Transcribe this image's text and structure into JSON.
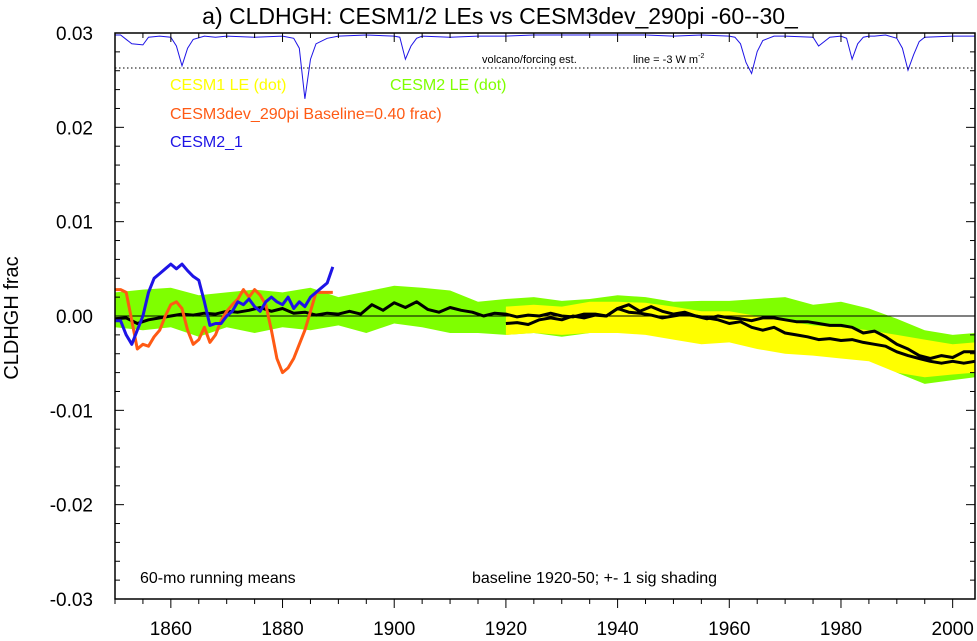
{
  "chart_data": {
    "type": "line",
    "title": "a) CLDHGH: CESM1/2 LEs vs CESM3dev_290pi -60--30_",
    "xlabel": "",
    "ylabel": "CLDHGH frac",
    "xlim": [
      1850,
      2004
    ],
    "ylim": [
      -0.03,
      0.03
    ],
    "x_ticks": [
      1860,
      1880,
      1900,
      1920,
      1940,
      1960,
      1980,
      2000
    ],
    "y_ticks": [
      -0.03,
      -0.02,
      -0.01,
      0.0,
      0.01,
      0.02,
      0.03
    ],
    "y_tick_labels": [
      "-0.03",
      "-0.02",
      "-0.01",
      "0.00",
      "0.01",
      "0.02",
      "0.03"
    ],
    "grid": false,
    "annotations": {
      "volcano_label": "volcano/forcing est.",
      "volcano_line_label": "line = -3 W m",
      "volcano_line_sup": "-2",
      "running_means": "60-mo running means",
      "baseline_note": "baseline 1920-50; +- 1 sig shading"
    },
    "legend": [
      {
        "label": "CESM1 LE (dot)",
        "color": "#ffff00"
      },
      {
        "label": "CESM2 LE (dot)",
        "color": "#7fff00"
      },
      {
        "label": "CESM3dev_290pi Baseline=0.40 frac)",
        "color": "#ff5a14"
      },
      {
        "label": "CESM2_1",
        "color": "#1e14e6"
      }
    ],
    "series": [
      {
        "name": "CESM2 LE (dot)",
        "kind": "band",
        "color": "#7fff00",
        "x": [
          1850,
          1855,
          1860,
          1865,
          1870,
          1875,
          1880,
          1885,
          1890,
          1895,
          1900,
          1905,
          1910,
          1915,
          1920,
          1925,
          1930,
          1935,
          1940,
          1945,
          1950,
          1955,
          1960,
          1965,
          1970,
          1975,
          1980,
          1985,
          1990,
          1995,
          2000,
          2004
        ],
        "upper": [
          0.0025,
          0.0028,
          0.003,
          0.0022,
          0.0025,
          0.0028,
          0.0025,
          0.003,
          0.002,
          0.0026,
          0.0032,
          0.003,
          0.0027,
          0.0015,
          0.0018,
          0.002,
          0.0016,
          0.0018,
          0.0022,
          0.002,
          0.0015,
          0.0016,
          0.0016,
          0.0018,
          0.002,
          0.0012,
          0.0015,
          0.0008,
          -0.0003,
          -0.0015,
          -0.002,
          -0.0018
        ],
        "lower": [
          -0.0012,
          -0.0015,
          -0.0012,
          -0.0022,
          -0.0012,
          -0.0018,
          -0.0012,
          -0.0015,
          -0.001,
          -0.0018,
          -0.0008,
          -0.0012,
          -0.0018,
          -0.0018,
          -0.002,
          -0.0018,
          -0.0022,
          -0.0018,
          -0.0018,
          -0.0018,
          -0.002,
          -0.0025,
          -0.002,
          -0.0025,
          -0.0022,
          -0.0028,
          -0.0035,
          -0.004,
          -0.006,
          -0.0072,
          -0.0068,
          -0.0065
        ]
      },
      {
        "name": "CESM1 LE (dot)",
        "kind": "band",
        "color": "#ffff00",
        "x": [
          1920,
          1925,
          1930,
          1935,
          1940,
          1945,
          1950,
          1955,
          1960,
          1965,
          1970,
          1975,
          1980,
          1985,
          1990,
          1995,
          2000,
          2004
        ],
        "upper": [
          0.001,
          0.0012,
          0.001,
          0.0015,
          0.0015,
          0.0014,
          0.001,
          0.0005,
          0.0005,
          0.0,
          -0.0005,
          -0.001,
          -0.0012,
          -0.0015,
          -0.002,
          -0.0025,
          -0.003,
          -0.0028
        ],
        "lower": [
          -0.002,
          -0.0018,
          -0.002,
          -0.0018,
          -0.0018,
          -0.002,
          -0.0025,
          -0.003,
          -0.0028,
          -0.0035,
          -0.004,
          -0.0042,
          -0.0045,
          -0.0048,
          -0.006,
          -0.0065,
          -0.0062,
          -0.006
        ]
      },
      {
        "name": "CESM2 LE (dot)",
        "kind": "line",
        "color": "#000000",
        "x": [
          1850,
          1852,
          1854,
          1856,
          1858,
          1860,
          1862,
          1864,
          1866,
          1868,
          1870,
          1872,
          1874,
          1876,
          1878,
          1880,
          1882,
          1884,
          1886,
          1888,
          1890,
          1892,
          1894,
          1896,
          1898,
          1900,
          1902,
          1904,
          1906,
          1908,
          1910,
          1912,
          1914,
          1916,
          1918,
          1920,
          1922,
          1924,
          1926,
          1928,
          1930,
          1932,
          1934,
          1936,
          1938,
          1940,
          1942,
          1944,
          1946,
          1948,
          1950,
          1952,
          1954,
          1956,
          1958,
          1960,
          1962,
          1964,
          1966,
          1968,
          1970,
          1972,
          1974,
          1976,
          1978,
          1980,
          1982,
          1984,
          1986,
          1988,
          1990,
          1992,
          1994,
          1996,
          1998,
          2000,
          2002,
          2004
        ],
        "y": [
          -0.0003,
          -0.0002,
          -0.0008,
          -0.0004,
          -0.0002,
          0.0,
          0.0002,
          0.0001,
          0.0003,
          0.0002,
          0.0005,
          0.0004,
          0.0006,
          0.0009,
          0.0005,
          0.0008,
          0.0003,
          0.0004,
          0.0001,
          0.0003,
          0.0002,
          0.0005,
          0.0002,
          0.0012,
          0.0006,
          0.0014,
          0.0009,
          0.0015,
          0.0007,
          0.0004,
          0.0009,
          0.0006,
          0.0004,
          0.0,
          0.0003,
          0.0002,
          -0.0001,
          0.0001,
          0.0,
          0.0003,
          0.0,
          -0.0001,
          0.0002,
          0.0002,
          0.0,
          0.0008,
          0.0004,
          0.0003,
          0.0001,
          -0.0002,
          0.0,
          0.0002,
          0.0,
          -0.0003,
          0.0,
          -0.0002,
          -0.0003,
          -0.0005,
          -0.0002,
          -0.0002,
          -0.0004,
          -0.0006,
          -0.0006,
          -0.0008,
          -0.001,
          -0.001,
          -0.0012,
          -0.0018,
          -0.0016,
          -0.0022,
          -0.003,
          -0.0035,
          -0.0042,
          -0.0045,
          -0.0042,
          -0.0044,
          -0.0038,
          -0.0038
        ]
      },
      {
        "name": "CESM1 LE (dot)",
        "kind": "line",
        "color": "#000000",
        "x": [
          1920,
          1922,
          1924,
          1926,
          1928,
          1930,
          1932,
          1934,
          1936,
          1938,
          1940,
          1942,
          1944,
          1946,
          1948,
          1950,
          1952,
          1954,
          1956,
          1958,
          1960,
          1962,
          1964,
          1966,
          1968,
          1970,
          1972,
          1974,
          1976,
          1978,
          1980,
          1982,
          1984,
          1986,
          1988,
          1990,
          1992,
          1994,
          1996,
          1998,
          2000,
          2002,
          2004
        ],
        "y": [
          -0.0008,
          -0.0007,
          -0.0009,
          -0.0004,
          -0.0002,
          -0.0004,
          0.0,
          -0.0002,
          0.0001,
          0.0,
          0.0008,
          0.0012,
          0.0005,
          0.001,
          0.0005,
          0.0002,
          0.0004,
          0.0,
          -0.0002,
          -0.0004,
          -0.0008,
          -0.0006,
          -0.0012,
          -0.0015,
          -0.0012,
          -0.0018,
          -0.002,
          -0.0022,
          -0.0025,
          -0.0024,
          -0.0026,
          -0.0025,
          -0.0028,
          -0.003,
          -0.0032,
          -0.0038,
          -0.0042,
          -0.0045,
          -0.0048,
          -0.005,
          -0.0048,
          -0.005,
          -0.0048
        ]
      },
      {
        "name": "CESM3dev_290pi Baseline=0.40 frac)",
        "kind": "line",
        "color": "#ff5a14",
        "x": [
          1850,
          1851,
          1852,
          1853,
          1854,
          1855,
          1856,
          1857,
          1858,
          1859,
          1860,
          1861,
          1862,
          1863,
          1864,
          1865,
          1866,
          1867,
          1868,
          1869,
          1870,
          1871,
          1872,
          1873,
          1874,
          1875,
          1876,
          1877,
          1878,
          1879,
          1880,
          1881,
          1882,
          1883,
          1884,
          1885,
          1886,
          1887,
          1888,
          1889
        ],
        "y": [
          0.0028,
          0.0028,
          0.0025,
          -0.0005,
          -0.0035,
          -0.003,
          -0.0032,
          -0.0022,
          -0.0015,
          0.0,
          0.0012,
          0.0015,
          0.0008,
          -0.0015,
          -0.003,
          -0.0025,
          -0.0012,
          -0.0028,
          -0.002,
          -0.0005,
          0.0005,
          0.0012,
          0.0018,
          0.0028,
          0.002,
          0.0028,
          0.0022,
          0.0012,
          -0.0015,
          -0.0045,
          -0.006,
          -0.0055,
          -0.0045,
          -0.003,
          -0.0015,
          0.0005,
          0.0025,
          0.0025,
          0.0025,
          0.0025
        ]
      },
      {
        "name": "CESM2_1",
        "kind": "line",
        "color": "#1e14e6",
        "x": [
          1850,
          1851,
          1852,
          1853,
          1854,
          1855,
          1856,
          1857,
          1858,
          1859,
          1860,
          1861,
          1862,
          1863,
          1864,
          1865,
          1866,
          1867,
          1868,
          1869,
          1870,
          1871,
          1872,
          1873,
          1874,
          1875,
          1876,
          1877,
          1878,
          1879,
          1880,
          1881,
          1882,
          1883,
          1884,
          1885,
          1886,
          1887,
          1888,
          1889
        ],
        "y": [
          -0.0005,
          -0.0005,
          -0.002,
          -0.003,
          -0.0015,
          0.0,
          0.0025,
          0.004,
          0.0045,
          0.005,
          0.0055,
          0.005,
          0.0055,
          0.0048,
          0.0042,
          0.0038,
          0.0015,
          -0.001,
          -0.0008,
          -0.0008,
          0.0,
          0.0005,
          0.0015,
          0.0012,
          0.0018,
          0.001,
          0.0005,
          0.0015,
          0.002,
          0.0015,
          0.0012,
          0.002,
          0.0008,
          0.0015,
          0.001,
          0.002,
          0.0025,
          0.003,
          0.0035,
          0.0052
        ]
      },
      {
        "name": "volcano/forcing est.",
        "kind": "forcing",
        "color": "#1e14e6",
        "x": [
          1850,
          1851,
          1853,
          1855,
          1856,
          1858,
          1860,
          1861,
          1862,
          1863,
          1864,
          1866,
          1868,
          1870,
          1875,
          1880,
          1882,
          1883,
          1884,
          1885,
          1886,
          1888,
          1890,
          1895,
          1900,
          1901,
          1902,
          1903,
          1904,
          1905,
          1910,
          1915,
          1920,
          1925,
          1930,
          1935,
          1940,
          1945,
          1950,
          1955,
          1960,
          1961,
          1962,
          1963,
          1964,
          1965,
          1966,
          1967,
          1968,
          1970,
          1975,
          1976,
          1977,
          1978,
          1980,
          1981,
          1982,
          1983,
          1984,
          1985,
          1986,
          1988,
          1990,
          1991,
          1992,
          1993,
          1994,
          1995,
          2000,
          2004
        ],
        "y": [
          0,
          0,
          -0.0008,
          -0.0009,
          -0.0002,
          -0.0001,
          -0.0002,
          -0.001,
          -0.0028,
          -0.0012,
          -0.0004,
          -0.0001,
          -0.0002,
          -0.0001,
          -0.0002,
          -0.0001,
          -0.0003,
          -0.0012,
          -0.0058,
          -0.0022,
          -0.0008,
          -0.0003,
          -0.0001,
          0,
          -0.0001,
          -0.0002,
          -0.0022,
          -0.001,
          -0.0003,
          -0.0001,
          -0.0002,
          -0.0001,
          -0.0001,
          0,
          0,
          0,
          0,
          0,
          -0.0001,
          0,
          -0.0001,
          -0.0002,
          -0.0008,
          -0.0025,
          -0.0035,
          -0.0015,
          -0.0005,
          -0.0003,
          -0.0001,
          -0.0001,
          -0.0002,
          -0.001,
          -0.0006,
          -0.0002,
          -0.0001,
          -0.0003,
          -0.0022,
          -0.0008,
          -0.0002,
          -0.0001,
          -0.0001,
          0,
          -0.0003,
          -0.0012,
          -0.0032,
          -0.0018,
          -0.0006,
          -0.0002,
          -0.0001,
          -0.0001
        ]
      }
    ]
  }
}
